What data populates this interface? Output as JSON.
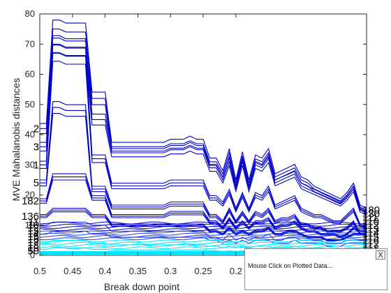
{
  "chart_data": {
    "type": "line",
    "title": "",
    "xlabel": "Break down point",
    "ylabel": "MVE Mahalanobis distances",
    "xlim": [
      0.5,
      0.0
    ],
    "ylim": [
      0,
      80
    ],
    "x_reversed": true,
    "grid": false,
    "xticks": [
      "0.5",
      "0.45",
      "0.4",
      "0.35",
      "0.3",
      "0.25",
      "0.2"
    ],
    "xtick_values": [
      0.5,
      0.45,
      0.4,
      0.35,
      0.3,
      0.25,
      0.2
    ],
    "yticks": [
      "0",
      "10",
      "20",
      "30",
      "40",
      "50",
      "60",
      "70",
      "80"
    ],
    "ytick_values": [
      0,
      10,
      20,
      30,
      40,
      50,
      60,
      70,
      80
    ],
    "x": [
      0.5,
      0.49,
      0.48,
      0.47,
      0.46,
      0.45,
      0.44,
      0.43,
      0.42,
      0.41,
      0.4,
      0.39,
      0.38,
      0.37,
      0.36,
      0.35,
      0.34,
      0.33,
      0.32,
      0.31,
      0.3,
      0.29,
      0.28,
      0.27,
      0.26,
      0.25,
      0.24,
      0.23,
      0.22,
      0.21,
      0.2,
      0.19,
      0.18,
      0.17,
      0.16,
      0.15,
      0.14,
      0.13,
      0.12,
      0.11,
      0.1,
      0.09,
      0.08,
      0.07,
      0.06,
      0.05,
      0.04,
      0.03,
      0.02,
      0.01,
      0.0
    ],
    "colors": {
      "dark": "#0000c8",
      "mid": "#1f3cf2",
      "light": "#00e5ff"
    },
    "bundle_offsets": [
      -2.4,
      0.0,
      2.4
    ],
    "series": [
      {
        "name": "2",
        "tone": "dark",
        "values": [
          42,
          42,
          75,
          75,
          74,
          74,
          74,
          74,
          52,
          52,
          52,
          36,
          36,
          36,
          36,
          36,
          36,
          36,
          36,
          36,
          37,
          37,
          37,
          38,
          37,
          37,
          31,
          31,
          27,
          34,
          24,
          33,
          24,
          32,
          31,
          34,
          26,
          27,
          28,
          29,
          25,
          24,
          22,
          21,
          20,
          19,
          18,
          20,
          23,
          16,
          15
        ]
      },
      {
        "name": "3",
        "tone": "dark",
        "values": [
          36,
          36,
          70,
          70,
          69,
          69,
          69,
          69,
          45,
          45,
          45,
          34,
          34,
          34,
          34,
          34,
          34,
          34,
          34,
          34,
          35,
          35,
          35,
          36,
          35,
          35,
          29,
          29,
          25,
          31,
          22,
          31,
          22,
          30,
          29,
          32,
          24,
          25,
          26,
          27,
          23,
          22,
          21,
          20,
          19,
          18,
          17,
          19,
          22,
          15,
          14
        ]
      },
      {
        "name": "1",
        "tone": "dark",
        "values": [
          30,
          30,
          67,
          67,
          66,
          66,
          66,
          66,
          32,
          32,
          32,
          23,
          23,
          23,
          23,
          23,
          23,
          23,
          23,
          23,
          24,
          24,
          24,
          24,
          24,
          24,
          19,
          19,
          17,
          21,
          15,
          20,
          15,
          20,
          19,
          22,
          16,
          17,
          18,
          19,
          15,
          14,
          13,
          13,
          12,
          11,
          11,
          13,
          15,
          10,
          9
        ]
      },
      {
        "name": "5",
        "tone": "dark",
        "values": [
          24,
          24,
          49,
          49,
          48,
          48,
          48,
          48,
          22,
          22,
          22,
          16,
          16,
          16,
          16,
          16,
          16,
          16,
          16,
          16,
          17,
          17,
          17,
          17,
          17,
          17,
          13,
          13,
          11,
          15,
          11,
          14,
          11,
          14,
          13,
          15,
          11,
          12,
          12,
          13,
          10,
          10,
          9,
          9,
          8,
          8,
          8,
          9,
          11,
          7,
          7
        ]
      },
      {
        "name": "182",
        "tone": "dark",
        "values": [
          18,
          18,
          26,
          26,
          26,
          26,
          26,
          26,
          19,
          19,
          19,
          13,
          13,
          13,
          13,
          13,
          13,
          13,
          13,
          13,
          14,
          14,
          14,
          14,
          14,
          14,
          11,
          11,
          9,
          12,
          9,
          11,
          9,
          11,
          11,
          12,
          9,
          10,
          10,
          11,
          9,
          8,
          8,
          7,
          7,
          7,
          6,
          7,
          9,
          8,
          8
        ]
      },
      {
        "name": "136",
        "tone": "dark",
        "values": [
          13,
          13,
          15,
          15,
          15,
          15,
          15,
          15,
          13,
          13,
          13,
          10,
          10,
          10,
          10,
          10,
          10,
          10,
          10,
          10,
          10,
          10,
          10,
          10,
          10,
          10,
          8,
          8,
          7,
          9,
          7,
          8,
          7,
          8,
          8,
          9,
          7,
          7,
          8,
          8,
          7,
          6,
          6,
          6,
          5,
          5,
          5,
          6,
          7,
          7,
          7
        ]
      },
      {
        "name": "",
        "tone": "mid",
        "values": [
          10,
          10,
          11,
          11,
          11,
          11,
          11,
          11,
          10,
          10,
          10,
          8,
          8,
          8,
          8,
          8,
          8,
          8,
          8,
          8,
          8,
          8,
          8,
          8,
          8,
          8,
          6,
          6,
          5,
          7,
          5,
          6,
          5,
          6,
          6,
          7,
          5,
          5,
          6,
          6,
          5,
          5,
          5,
          5,
          4,
          4,
          4,
          5,
          5,
          5,
          5
        ]
      },
      {
        "name": "",
        "tone": "mid",
        "values": [
          7,
          7,
          8,
          8,
          8,
          8,
          8,
          8,
          7,
          7,
          7,
          6,
          6,
          6,
          6,
          6,
          6,
          6,
          6,
          6,
          6,
          6,
          6,
          6,
          6,
          6,
          5,
          5,
          4,
          5,
          4,
          5,
          4,
          5,
          5,
          5,
          4,
          4,
          4,
          5,
          4,
          4,
          4,
          4,
          3,
          3,
          3,
          4,
          4,
          4,
          4
        ]
      },
      {
        "name": "",
        "tone": "light",
        "values": [
          4,
          4,
          5,
          5,
          5,
          5,
          5,
          5,
          4,
          4,
          4,
          3.5,
          3.5,
          3.5,
          3.5,
          3.5,
          3.5,
          3.5,
          3.5,
          3.5,
          3.5,
          3.5,
          3.5,
          3.5,
          3.5,
          3.5,
          3,
          3,
          2.5,
          3,
          2.5,
          3,
          2.5,
          3,
          3,
          3,
          2.5,
          2.5,
          2.5,
          3,
          2.5,
          2.5,
          2.5,
          2.5,
          2,
          2,
          2,
          2.5,
          2.5,
          2.5,
          2.5
        ]
      },
      {
        "name": "",
        "tone": "light",
        "values": [
          2,
          2,
          2.5,
          2.5,
          2.5,
          2.5,
          2.5,
          2.5,
          2,
          2,
          2,
          1.8,
          1.8,
          1.8,
          1.8,
          1.8,
          1.8,
          1.8,
          1.8,
          1.8,
          1.8,
          1.8,
          1.8,
          1.8,
          1.8,
          1.8,
          1.5,
          1.5,
          1.3,
          1.5,
          1.3,
          1.5,
          1.3,
          1.5,
          1.5,
          1.5,
          1.3,
          1.3,
          1.3,
          1.5,
          1.3,
          1.3,
          1.3,
          1.3,
          1.2,
          1.2,
          1.2,
          1.3,
          1.3,
          1.3,
          1.3
        ]
      }
    ],
    "left_labels": [
      "2",
      "3",
      "1",
      "5",
      "182",
      "136",
      "11",
      "10",
      "12",
      "13",
      "14",
      "15",
      "16",
      "17",
      "18",
      "19",
      "50"
    ],
    "right_labels": [
      "180",
      "130",
      "111",
      "110",
      "112",
      "113",
      "114",
      "115",
      "116",
      "117",
      "118"
    ]
  },
  "panel": {
    "close_label": "X",
    "text": "Mouse Click on Plotted Data..."
  }
}
